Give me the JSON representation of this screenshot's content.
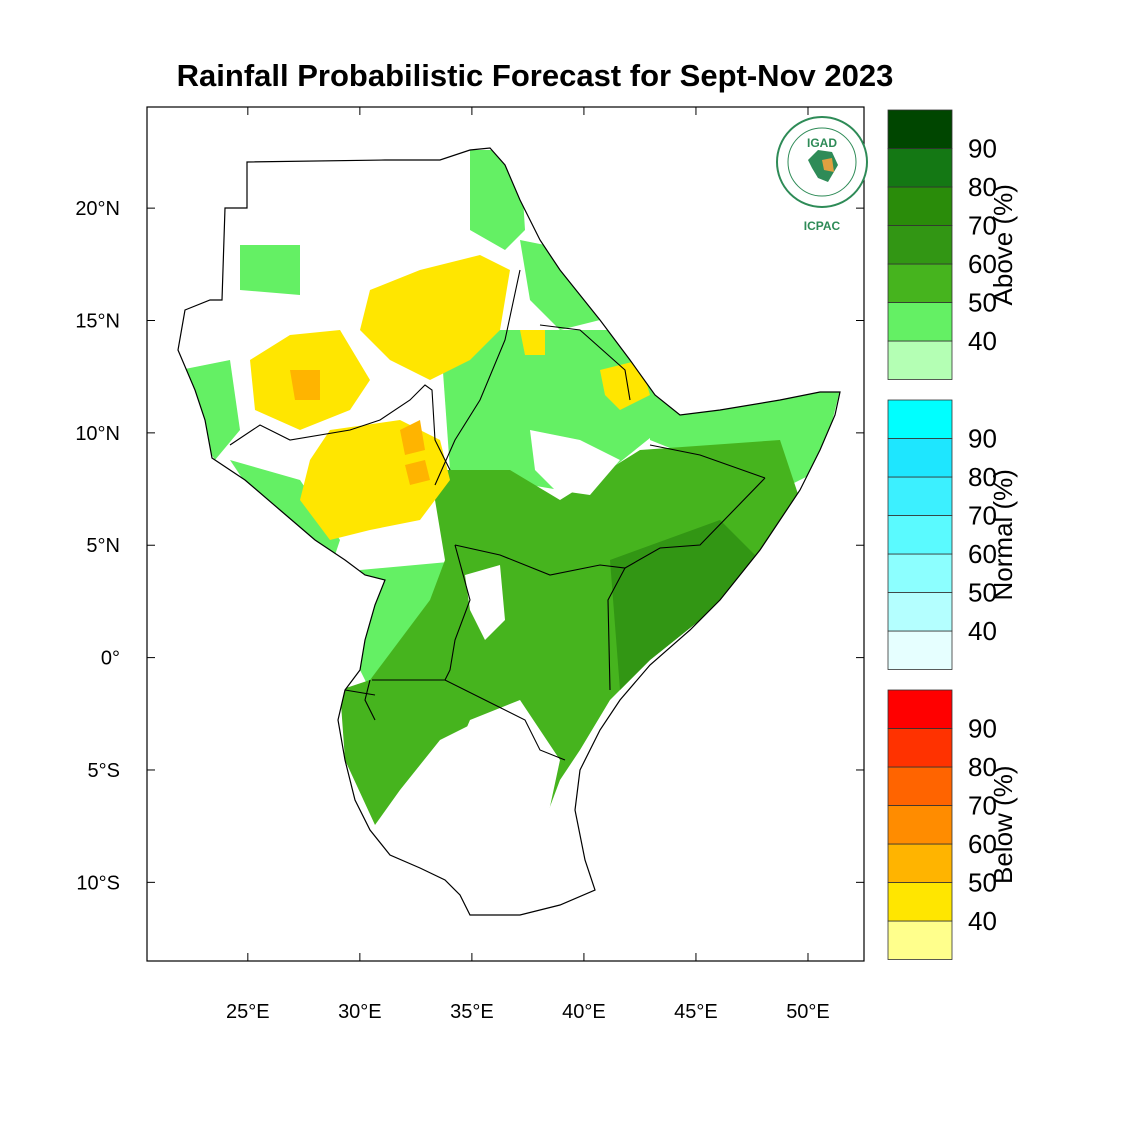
{
  "title": "Rainfall Probabilistic Forecast for Sept-Nov 2023",
  "map": {
    "lon_range": [
      20.5,
      52.5
    ],
    "lat_range": [
      -13.5,
      24.5
    ],
    "x_ticks": [
      {
        "lon": 25,
        "label": "25°E"
      },
      {
        "lon": 30,
        "label": "30°E"
      },
      {
        "lon": 35,
        "label": "35°E"
      },
      {
        "lon": 40,
        "label": "40°E"
      },
      {
        "lon": 45,
        "label": "45°E"
      },
      {
        "lon": 50,
        "label": "50°E"
      }
    ],
    "y_ticks": [
      {
        "lat": 20,
        "label": "20°N"
      },
      {
        "lat": 15,
        "label": "15°N"
      },
      {
        "lat": 10,
        "label": "10°N"
      },
      {
        "lat": 5,
        "label": "5°N"
      },
      {
        "lat": 0,
        "label": "0°"
      },
      {
        "lat": -5,
        "label": "5°S"
      },
      {
        "lat": -10,
        "label": "10°S"
      }
    ]
  },
  "logo": {
    "top_text": "IGAD",
    "bottom_text": "ICPAC",
    "ring_text": "INTERGOVERNMENTAL AUTHORITY ON DEVELOPMENT"
  },
  "colorbars": [
    {
      "title": "Above (%)",
      "labels": [
        "40",
        "50",
        "60",
        "70",
        "80",
        "90"
      ],
      "colors": [
        "#b4ffb4",
        "#64f064",
        "#46b41e",
        "#329614",
        "#2a8c0a",
        "#147814",
        "#004600"
      ]
    },
    {
      "title": "Normal (%)",
      "labels": [
        "40",
        "50",
        "60",
        "70",
        "80",
        "90"
      ],
      "colors": [
        "#e6ffff",
        "#b4ffff",
        "#8cffff",
        "#5afaff",
        "#3cf0ff",
        "#1ee6ff",
        "#00ffff"
      ]
    },
    {
      "title": "Below (%)",
      "labels": [
        "40",
        "50",
        "60",
        "70",
        "80",
        "90"
      ],
      "colors": [
        "#ffff8c",
        "#ffe600",
        "#ffb400",
        "#ff8c00",
        "#ff6400",
        "#ff3200",
        "#ff0000"
      ]
    }
  ]
}
